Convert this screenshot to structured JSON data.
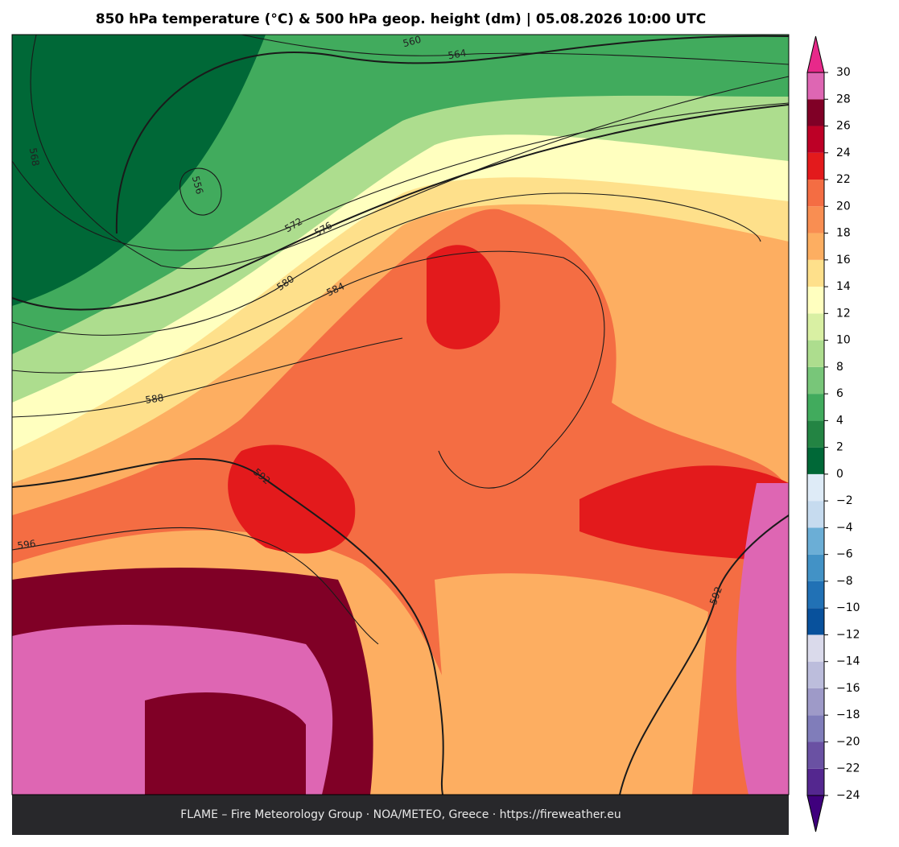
{
  "title": "850 hPa temperature (°C) & 500 hPa geop. height (dm)  |  05.08.2026 10:00 UTC",
  "footer": "FLAME – Fire Meteorology Group · NOA/METEO, Greece · https://fireweather.eu",
  "colorbar": {
    "lim": [
      -24,
      30
    ],
    "colors": [
      "#54278f",
      "#6a51a3",
      "#807dba",
      "#9e9ac8",
      "#bcbddc",
      "#dadaeb",
      "#08519c",
      "#2171b5",
      "#4292c6",
      "#6baed6",
      "#c6dbef",
      "#deebf7",
      "#006837",
      "#238443",
      "#41ab5d",
      "#78c679",
      "#addd8e",
      "#d9f0a3",
      "#ffffbf",
      "#fee08b",
      "#fdae61",
      "#f98e52",
      "#f46d43",
      "#e31a1c",
      "#bd0026",
      "#800026",
      "#de66b3"
    ],
    "over_color": "#e7298a",
    "under_color": "#3f007d",
    "ticks": [
      30,
      28,
      26,
      24,
      22,
      20,
      18,
      16,
      14,
      12,
      10,
      8,
      6,
      4,
      2,
      0,
      {
        "value": -2,
        "label": "−2"
      },
      {
        "value": -4,
        "label": "−4"
      },
      {
        "value": -6,
        "label": "−6"
      },
      {
        "value": -8,
        "label": "−8"
      },
      {
        "value": -10,
        "label": "−10"
      },
      {
        "value": -12,
        "label": "−12"
      },
      {
        "value": -14,
        "label": "−14"
      },
      {
        "value": -16,
        "label": "−16"
      },
      {
        "value": -18,
        "label": "−18"
      },
      {
        "value": -20,
        "label": "−20"
      },
      {
        "value": -22,
        "label": "−22"
      },
      {
        "value": -24,
        "label": "−24"
      }
    ]
  },
  "contours": [
    {
      "value": 556
    },
    {
      "value": 560
    },
    {
      "value": 564
    },
    {
      "value": 568
    },
    {
      "value": 572
    },
    {
      "value": 576
    },
    {
      "value": 580
    },
    {
      "value": 584
    },
    {
      "value": 588
    },
    {
      "value": 592
    },
    {
      "value": 596
    },
    {
      "value": 592
    }
  ]
}
